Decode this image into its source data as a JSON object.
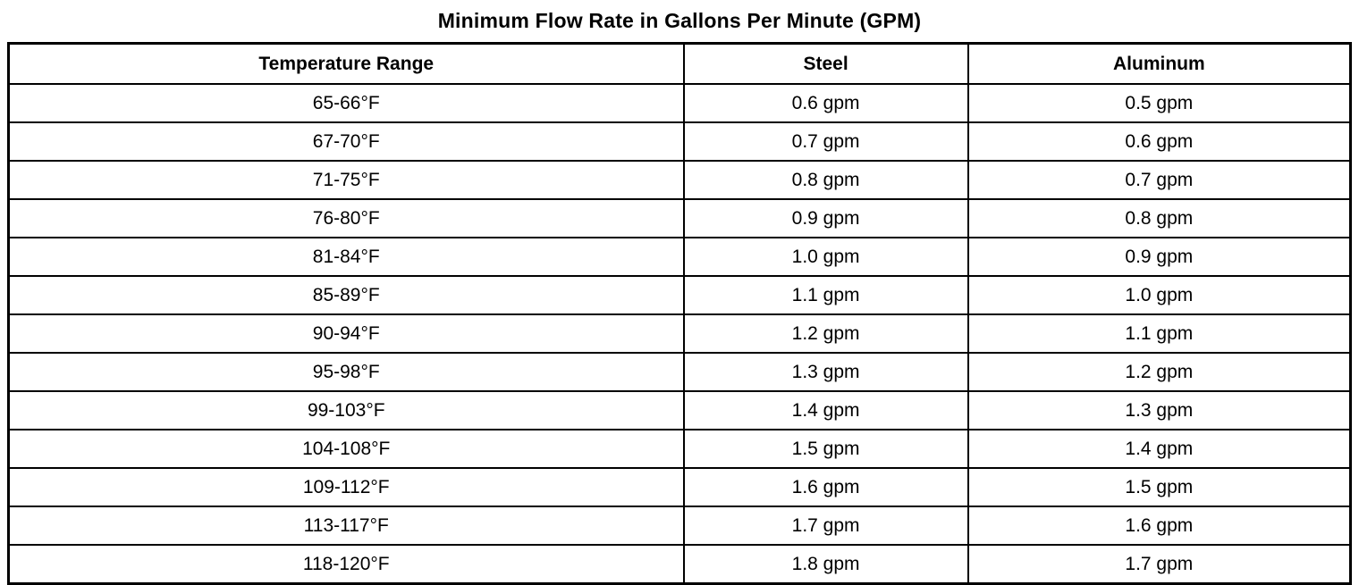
{
  "title": "Minimum Flow Rate in Gallons Per Minute (GPM)",
  "table": {
    "headers": {
      "temperature": "Temperature Range",
      "steel": "Steel",
      "aluminum": "Aluminum"
    },
    "rows": [
      {
        "range": "65-66°F",
        "steel": "0.6 gpm",
        "aluminum": "0.5 gpm"
      },
      {
        "range": "67-70°F",
        "steel": "0.7 gpm",
        "aluminum": "0.6 gpm"
      },
      {
        "range": "71-75°F",
        "steel": "0.8 gpm",
        "aluminum": "0.7 gpm"
      },
      {
        "range": "76-80°F",
        "steel": "0.9 gpm",
        "aluminum": "0.8 gpm"
      },
      {
        "range": "81-84°F",
        "steel": "1.0 gpm",
        "aluminum": "0.9 gpm"
      },
      {
        "range": "85-89°F",
        "steel": "1.1 gpm",
        "aluminum": "1.0 gpm"
      },
      {
        "range": "90-94°F",
        "steel": "1.2 gpm",
        "aluminum": "1.1 gpm"
      },
      {
        "range": "95-98°F",
        "steel": "1.3 gpm",
        "aluminum": "1.2 gpm"
      },
      {
        "range": "99-103°F",
        "steel": "1.4 gpm",
        "aluminum": "1.3 gpm"
      },
      {
        "range": "104-108°F",
        "steel": "1.5 gpm",
        "aluminum": "1.4 gpm"
      },
      {
        "range": "109-112°F",
        "steel": "1.6 gpm",
        "aluminum": "1.5 gpm"
      },
      {
        "range": "113-117°F",
        "steel": "1.7 gpm",
        "aluminum": "1.6 gpm"
      },
      {
        "range": "118-120°F",
        "steel": "1.8 gpm",
        "aluminum": "1.7 gpm"
      }
    ]
  }
}
